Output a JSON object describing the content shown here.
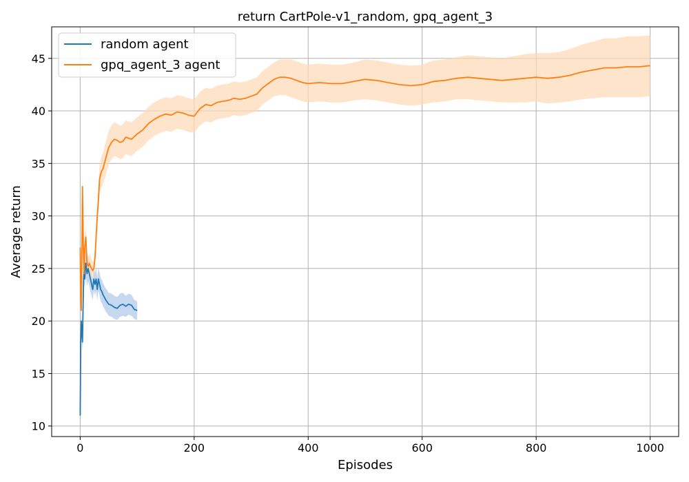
{
  "chart_data": {
    "type": "line",
    "title": "return CartPole-v1_random, gpq_agent_3",
    "xlabel": "Episodes",
    "ylabel": "Average return",
    "xlim": [
      -50,
      1050
    ],
    "ylim": [
      9,
      48
    ],
    "xticks": [
      0,
      200,
      400,
      600,
      800,
      1000
    ],
    "yticks": [
      10,
      15,
      20,
      25,
      30,
      35,
      40,
      45
    ],
    "grid": true,
    "legend_position": "top-left",
    "series": [
      {
        "name": "random agent",
        "color": "#1f77b4",
        "band_color": "#aec7e8",
        "x": [
          0,
          1,
          2,
          3,
          4,
          5,
          6,
          7,
          8,
          9,
          10,
          12,
          14,
          16,
          18,
          20,
          22,
          24,
          26,
          28,
          30,
          32,
          34,
          36,
          38,
          40,
          45,
          50,
          55,
          60,
          65,
          70,
          75,
          80,
          85,
          90,
          95,
          100
        ],
        "y": [
          11,
          18,
          20,
          19,
          18,
          21,
          24,
          25,
          24,
          25,
          25.5,
          24.5,
          25,
          24.5,
          24,
          23.5,
          23,
          24,
          23.5,
          24,
          23,
          24,
          23.5,
          23,
          22.8,
          22.5,
          22,
          21.6,
          21.5,
          21.3,
          21.2,
          21.5,
          21.6,
          21.4,
          21.6,
          21.5,
          21.1,
          21.0
        ],
        "y_lower": [
          11,
          18,
          19,
          18,
          17,
          19.5,
          22.5,
          23.5,
          23,
          23.8,
          24.2,
          23.3,
          23.8,
          23.3,
          22.8,
          22.4,
          22,
          22.9,
          22.4,
          22.9,
          21.9,
          22.9,
          22.4,
          21.9,
          21.7,
          21.4,
          20.9,
          20.5,
          20.4,
          20.2,
          20.1,
          20.4,
          20.5,
          20.4,
          20.6,
          20.5,
          20.2,
          20.1
        ],
        "y_upper": [
          11,
          18,
          21,
          20,
          19,
          22.5,
          25.5,
          26.5,
          25,
          26.2,
          26.8,
          25.7,
          26.2,
          25.7,
          25.2,
          24.6,
          24,
          25.1,
          24.6,
          25.1,
          24.1,
          25.1,
          24.6,
          24.1,
          23.9,
          23.6,
          23.1,
          22.7,
          22.6,
          22.4,
          22.3,
          22.6,
          22.7,
          22.4,
          22.6,
          22.5,
          22.0,
          21.9
        ]
      },
      {
        "name": "gpq_agent_3 agent",
        "color": "#ff7f0e",
        "band_color": "#ffd8b6",
        "x": [
          0,
          1,
          2,
          3,
          4,
          5,
          6,
          7,
          8,
          10,
          12,
          14,
          16,
          18,
          20,
          22,
          24,
          26,
          28,
          30,
          32,
          34,
          36,
          38,
          40,
          45,
          50,
          55,
          60,
          65,
          70,
          75,
          80,
          90,
          100,
          110,
          120,
          130,
          140,
          150,
          160,
          170,
          180,
          190,
          200,
          210,
          220,
          230,
          240,
          250,
          260,
          270,
          280,
          290,
          300,
          310,
          320,
          330,
          340,
          350,
          360,
          370,
          380,
          390,
          400,
          420,
          440,
          460,
          480,
          500,
          520,
          540,
          560,
          580,
          600,
          620,
          640,
          660,
          680,
          700,
          720,
          740,
          760,
          780,
          800,
          820,
          840,
          860,
          880,
          900,
          920,
          940,
          960,
          980,
          1000
        ],
        "y": [
          27,
          22,
          21,
          26,
          32.8,
          29,
          26,
          24.5,
          27,
          28,
          25.5,
          25.2,
          25.5,
          25.2,
          25,
          24.8,
          25,
          26,
          28,
          30,
          31.5,
          33.5,
          34,
          34.3,
          34.5,
          35.5,
          36.5,
          37,
          37.3,
          37.2,
          37,
          37.1,
          37.5,
          37.3,
          37.8,
          38.2,
          38.8,
          39.2,
          39.5,
          39.7,
          39.6,
          39.9,
          39.8,
          39.6,
          39.5,
          40.2,
          40.6,
          40.5,
          40.8,
          40.9,
          41.0,
          41.2,
          41.1,
          41.2,
          41.4,
          41.6,
          42.2,
          42.6,
          43.0,
          43.2,
          43.2,
          43.1,
          42.9,
          42.7,
          42.6,
          42.7,
          42.6,
          42.6,
          42.8,
          43.0,
          42.9,
          42.7,
          42.5,
          42.4,
          42.5,
          42.8,
          42.9,
          43.1,
          43.2,
          43.1,
          43.0,
          42.9,
          43.0,
          43.1,
          43.2,
          43.1,
          43.2,
          43.4,
          43.7,
          43.9,
          44.1,
          44.1,
          44.2,
          44.2,
          44.3
        ],
        "y_lower": [
          27,
          21.2,
          20.2,
          24.8,
          31.4,
          27.8,
          25,
          23.7,
          26,
          26.8,
          24.6,
          24.3,
          24.6,
          24.3,
          24.1,
          24,
          24.2,
          25.1,
          27,
          28.8,
          30.2,
          32.1,
          32.6,
          32.8,
          33.0,
          33.9,
          34.9,
          35.4,
          35.7,
          35.6,
          35.4,
          35.5,
          35.9,
          35.7,
          36.2,
          36.6,
          37.2,
          37.6,
          37.9,
          38.1,
          38.0,
          38.3,
          38.2,
          38.0,
          37.9,
          38.6,
          39.0,
          38.9,
          39.2,
          39.3,
          39.4,
          39.6,
          39.5,
          39.6,
          39.8,
          40.0,
          40.6,
          41.0,
          41.4,
          41.5,
          41.5,
          41.3,
          41.1,
          40.9,
          40.8,
          40.9,
          40.8,
          40.8,
          41.0,
          41.1,
          41.0,
          40.8,
          40.6,
          40.5,
          40.6,
          40.8,
          40.9,
          41.1,
          41.1,
          41.0,
          40.9,
          40.8,
          40.8,
          40.8,
          40.9,
          40.7,
          40.8,
          40.9,
          41.1,
          41.2,
          41.3,
          41.3,
          41.3,
          41.3,
          41.4
        ],
        "y_upper": [
          27,
          22.8,
          21.8,
          27.2,
          34.2,
          30.2,
          27,
          25.3,
          28,
          29.2,
          26.4,
          26.1,
          26.4,
          26.1,
          25.9,
          25.6,
          25.8,
          26.9,
          29,
          31.2,
          32.8,
          34.9,
          35.4,
          35.8,
          36.0,
          37.1,
          38.1,
          38.6,
          38.9,
          38.8,
          38.6,
          38.7,
          39.1,
          38.9,
          39.4,
          39.8,
          40.4,
          40.8,
          41.1,
          41.3,
          41.2,
          41.5,
          41.4,
          41.2,
          41.1,
          41.8,
          42.2,
          42.1,
          42.4,
          42.5,
          42.6,
          42.8,
          42.7,
          42.8,
          43.0,
          43.2,
          43.8,
          44.2,
          44.6,
          44.9,
          44.9,
          44.9,
          44.7,
          44.5,
          44.4,
          44.5,
          44.4,
          44.4,
          44.6,
          44.9,
          44.8,
          44.6,
          44.4,
          44.3,
          44.4,
          44.8,
          44.9,
          45.1,
          45.3,
          45.2,
          45.1,
          45.0,
          45.2,
          45.4,
          45.5,
          45.5,
          45.6,
          45.9,
          46.3,
          46.6,
          46.9,
          46.9,
          47.1,
          47.1,
          47.2
        ]
      }
    ]
  }
}
